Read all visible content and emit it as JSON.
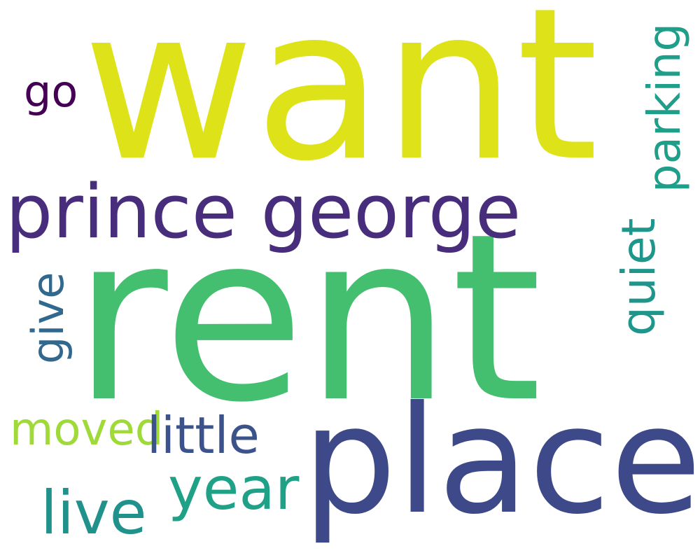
{
  "words": {
    "want": "want",
    "rent": "rent",
    "place": "place",
    "prince_george": "prince george",
    "go": "go",
    "moved": "moved",
    "little": "little",
    "year": "year",
    "live": "live",
    "parking": "parking",
    "quiet": "quiet",
    "give": "give"
  },
  "colors": {
    "want": "#dde318",
    "rent": "#44bf70",
    "place": "#3e4989",
    "prince_george": "#472d7b",
    "go": "#440154",
    "moved": "#a0da39",
    "little": "#3b528b",
    "year": "#1fa187",
    "live": "#21918c",
    "parking": "#1f9e89",
    "quiet": "#1f968b",
    "give": "#31688e"
  }
}
